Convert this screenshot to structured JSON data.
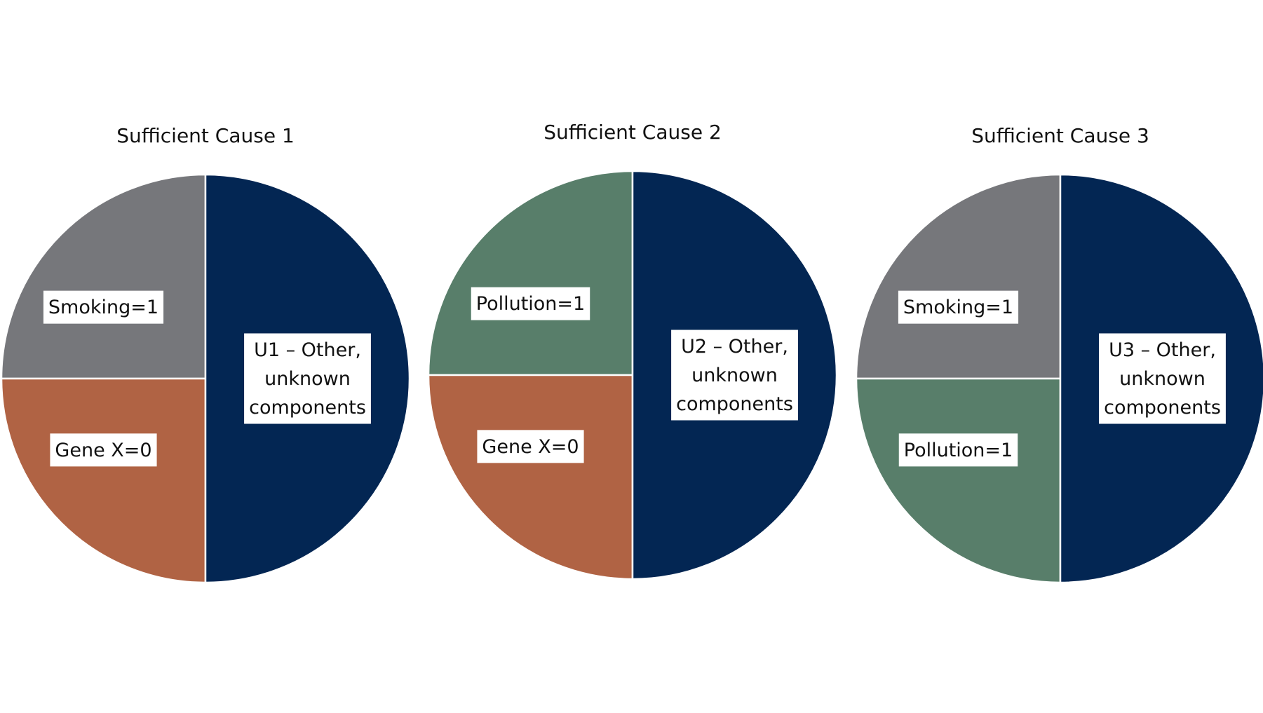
{
  "chart_data": [
    {
      "type": "pie",
      "title": "Sufficient Cause 1",
      "slices": [
        {
          "label": "Smoking=1",
          "value": 25,
          "color": "#76777b"
        },
        {
          "label": "Gene X=0",
          "value": 25,
          "color": "#b06344"
        },
        {
          "label": "U1 – Other, unknown components",
          "lines": [
            "U1 – Other,",
            "unknown",
            "components"
          ],
          "value": 50,
          "color": "#032653"
        }
      ]
    },
    {
      "type": "pie",
      "title": "Sufficient Cause 2",
      "slices": [
        {
          "label": "Pollution=1",
          "value": 25,
          "color": "#587e6a"
        },
        {
          "label": "Gene X=0",
          "value": 25,
          "color": "#b06344"
        },
        {
          "label": "U2 – Other, unknown components",
          "lines": [
            "U2 – Other,",
            "unknown",
            "components"
          ],
          "value": 50,
          "color": "#032653"
        }
      ]
    },
    {
      "type": "pie",
      "title": "Sufficient Cause 3",
      "slices": [
        {
          "label": "Smoking=1",
          "value": 25,
          "color": "#76777b"
        },
        {
          "label": "Pollution=1",
          "value": 25,
          "color": "#587e6a"
        },
        {
          "label": "U3 – Other, unknown components",
          "lines": [
            "U3 – Other,",
            "unknown",
            "components"
          ],
          "value": 50,
          "color": "#032653"
        }
      ]
    }
  ]
}
